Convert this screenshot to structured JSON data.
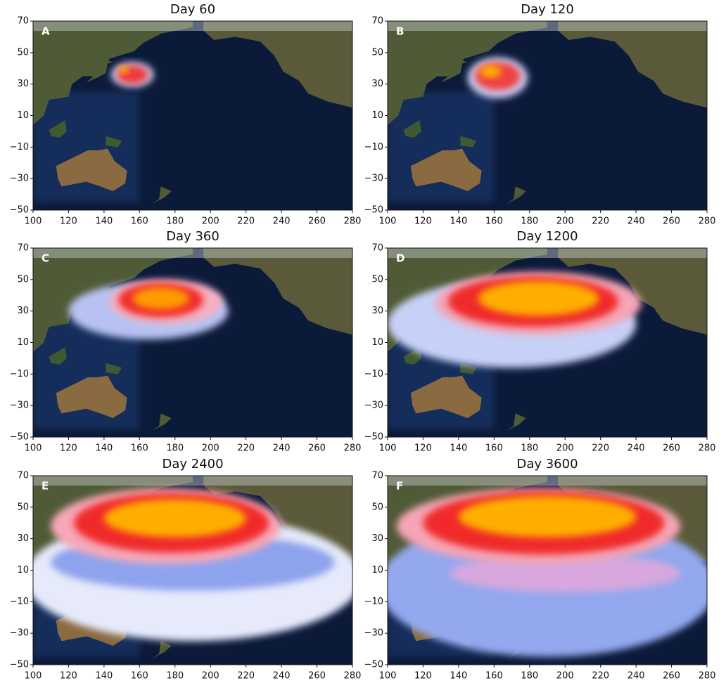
{
  "chart_data": [
    {
      "type": "map",
      "title": "Day 60",
      "panel_label": "A",
      "xlim": [
        100,
        280
      ],
      "ylim": [
        -50,
        70
      ],
      "xticks": [
        100,
        120,
        140,
        160,
        180,
        200,
        220,
        240,
        260,
        280
      ],
      "yticks": [
        {
          "value": -50,
          "label": "−50"
        },
        {
          "value": -30,
          "label": "−30"
        },
        {
          "value": -10,
          "label": "−10"
        },
        10,
        30,
        50,
        70
      ]
    },
    {
      "type": "map",
      "title": "Day 120",
      "panel_label": "B",
      "xlim": [
        100,
        280
      ],
      "ylim": [
        -50,
        70
      ],
      "xticks": [
        100,
        120,
        140,
        160,
        180,
        200,
        220,
        240,
        260,
        280
      ],
      "yticks": [
        {
          "value": -50,
          "label": "−50"
        },
        {
          "value": -30,
          "label": "−30"
        },
        {
          "value": -10,
          "label": "−10"
        },
        10,
        30,
        50,
        70
      ]
    },
    {
      "type": "map",
      "title": "Day 360",
      "panel_label": "C",
      "xlim": [
        100,
        280
      ],
      "ylim": [
        -50,
        70
      ],
      "xticks": [
        100,
        120,
        140,
        160,
        180,
        200,
        220,
        240,
        260,
        280
      ],
      "yticks": [
        {
          "value": -50,
          "label": "−50"
        },
        {
          "value": -30,
          "label": "−30"
        },
        {
          "value": -10,
          "label": "−10"
        },
        10,
        30,
        50,
        70
      ]
    },
    {
      "type": "map",
      "title": "Day 1200",
      "panel_label": "D",
      "xlim": [
        100,
        280
      ],
      "ylim": [
        -50,
        70
      ],
      "xticks": [
        100,
        120,
        140,
        160,
        180,
        200,
        220,
        240,
        260,
        280
      ],
      "yticks": [
        {
          "value": -50,
          "label": "−50"
        },
        {
          "value": -30,
          "label": "−30"
        },
        {
          "value": -10,
          "label": "−10"
        },
        10,
        30,
        50,
        70
      ]
    },
    {
      "type": "map",
      "title": "Day 2400",
      "panel_label": "E",
      "xlim": [
        100,
        280
      ],
      "ylim": [
        -50,
        70
      ],
      "xticks": [
        100,
        120,
        140,
        160,
        180,
        200,
        220,
        240,
        260,
        280
      ],
      "yticks": [
        {
          "value": -50,
          "label": "−50"
        },
        {
          "value": -30,
          "label": "−30"
        },
        {
          "value": -10,
          "label": "−10"
        },
        10,
        30,
        50,
        70
      ]
    },
    {
      "type": "map",
      "title": "Day 3600",
      "panel_label": "F",
      "xlim": [
        100,
        280
      ],
      "ylim": [
        -50,
        70
      ],
      "xticks": [
        100,
        120,
        140,
        160,
        180,
        200,
        220,
        240,
        260,
        280
      ],
      "yticks": [
        {
          "value": -50,
          "label": "−50"
        },
        {
          "value": -30,
          "label": "−30"
        },
        {
          "value": -10,
          "label": "−10"
        },
        10,
        30,
        50,
        70
      ]
    }
  ]
}
